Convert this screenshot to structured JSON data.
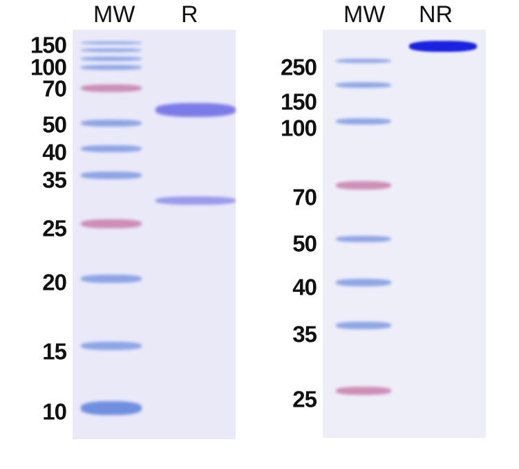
{
  "left_panel": {
    "lane_headers": [
      "MW",
      "R"
    ],
    "marker_labels": [
      "150",
      "100",
      "70",
      "50",
      "40",
      "35",
      "25",
      "20",
      "15",
      "10"
    ]
  },
  "right_panel": {
    "lane_headers": [
      "MW",
      "NR"
    ],
    "marker_labels": [
      "250",
      "150",
      "100",
      "70",
      "50",
      "40",
      "35",
      "25"
    ]
  },
  "colors": {
    "gel": "#e9e9f8",
    "marker_blue": "#6f8fe0",
    "marker_pink": "#c46fa0",
    "sample_band": "#6a6ae6",
    "nr_band": "#1a22e0"
  }
}
